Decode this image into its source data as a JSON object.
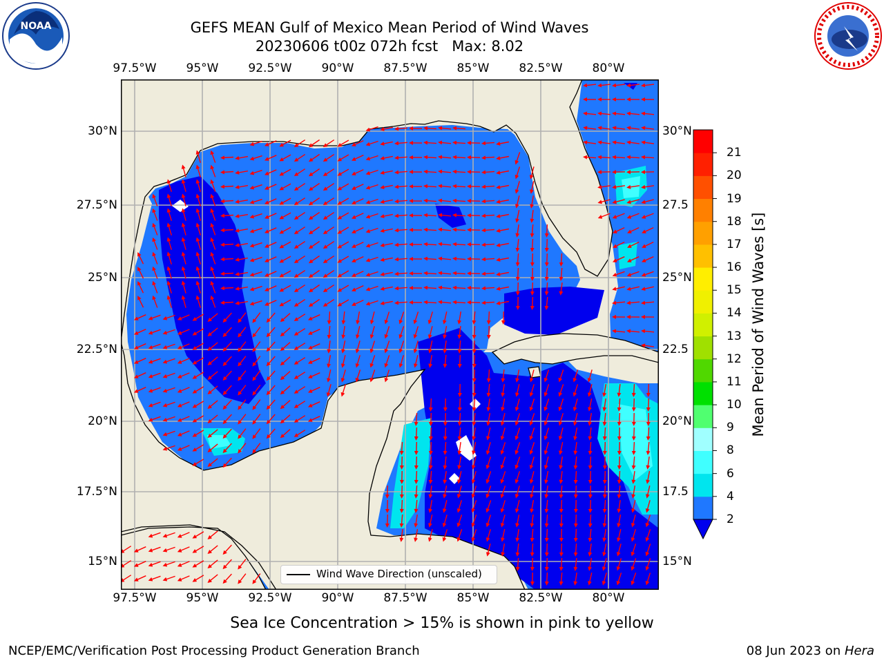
{
  "title": {
    "line1": "GEFS MEAN Gulf of Mexico Mean Period of Wind Waves",
    "line2": "20230606 t00z 072h fcst   Max: 8.02"
  },
  "map": {
    "lon_ticks": [
      "97.5°W",
      "95°W",
      "92.5°W",
      "90°W",
      "87.5°W",
      "85°W",
      "82.5°W",
      "80°W"
    ],
    "lat_ticks_left": [
      "30°N",
      "27.5°N",
      "25°N",
      "22.5°N",
      "20°N",
      "17.5°N",
      "15°N"
    ],
    "lat_ticks_right": [
      "30°N",
      "27.5",
      "25°N",
      "22.5",
      "20°N",
      "17.5",
      "15°N"
    ],
    "land_color": "#efecdc",
    "coast_color": "#000000",
    "arrow_color": "#ff0000",
    "grid_color": "#b0b0b0",
    "legend_label": "Wind Wave Direction (unscaled)"
  },
  "colorbar": {
    "label": "Mean Period of Wind Waves [s]",
    "tick_labels": [
      "2",
      "4",
      "6",
      "8",
      "9",
      "10",
      "11",
      "12",
      "13",
      "14",
      "15",
      "16",
      "17",
      "18",
      "19",
      "20",
      "21"
    ],
    "colors": [
      "#0000ee",
      "#1f78ff",
      "#00e5ee",
      "#40ffff",
      "#a0ffff",
      "#50ff70",
      "#00e000",
      "#50d800",
      "#a0e000",
      "#d0f000",
      "#f0f000",
      "#ffee00",
      "#ffc000",
      "#ffa000",
      "#ff8000",
      "#ff5000",
      "#ff2000",
      "#ff0000"
    ]
  },
  "caption": "Sea Ice Concentration > 15% is shown in pink to yellow",
  "footer": {
    "left": "NCEP/EMC/Verification Post Processing Product Generation Branch",
    "right_prefix": "08 Jun 2023 on ",
    "right_machine": "Hera"
  }
}
